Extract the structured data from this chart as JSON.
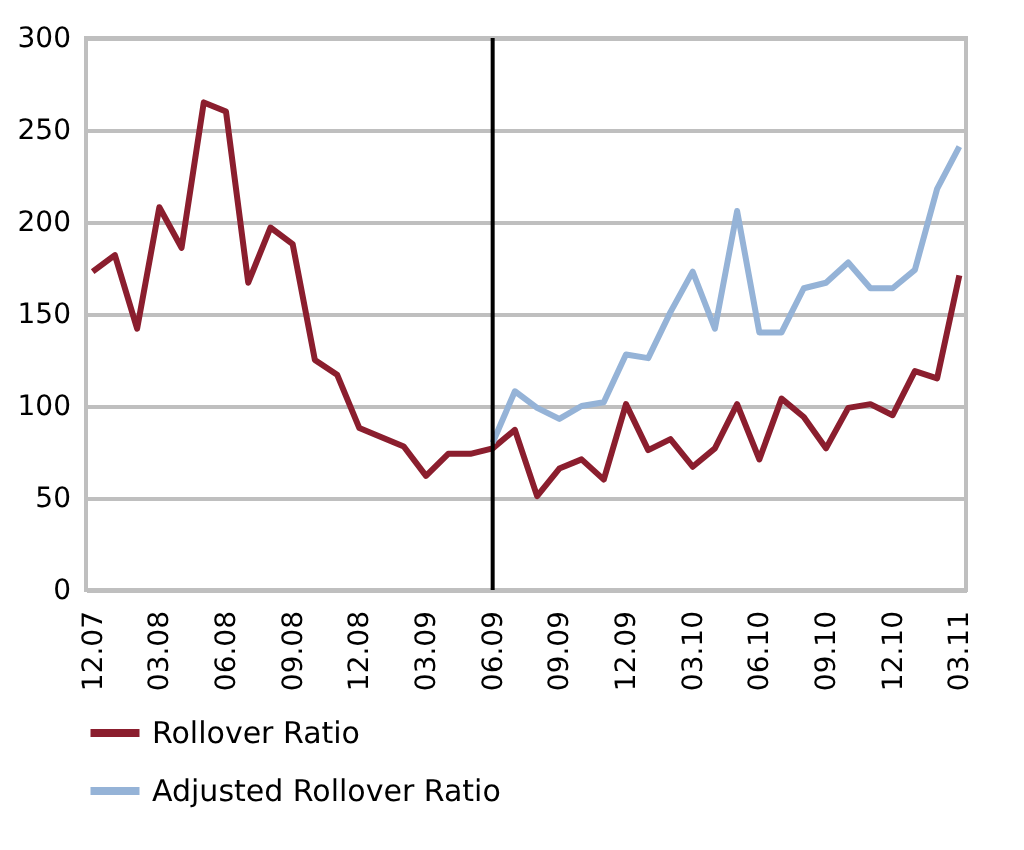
{
  "chart_data": {
    "type": "line",
    "categories": [
      "12.07",
      null,
      null,
      "03.08",
      null,
      null,
      "06.08",
      null,
      null,
      "09.08",
      null,
      null,
      "12.08",
      null,
      null,
      "03.09",
      null,
      null,
      "06.09",
      null,
      null,
      "09.09",
      null,
      null,
      "12.09",
      null,
      null,
      "03.10",
      null,
      null,
      "06.10",
      null,
      null,
      "09.10",
      null,
      null,
      "12.10",
      null,
      null,
      "03.11"
    ],
    "series": [
      {
        "name": "Rollover Ratio",
        "color": "#8b1e2e",
        "values": [
          173,
          182,
          142,
          208,
          186,
          265,
          260,
          167,
          197,
          188,
          125,
          117,
          88,
          83,
          78,
          62,
          74,
          74,
          77,
          87,
          51,
          66,
          71,
          60,
          101,
          76,
          82,
          67,
          77,
          101,
          71,
          104,
          94,
          77,
          99,
          101,
          95,
          119,
          115,
          171
        ]
      },
      {
        "name": "Adjusted Rollover Ratio",
        "color": "#95b3d7",
        "values": [
          null,
          null,
          null,
          null,
          null,
          null,
          null,
          null,
          null,
          null,
          null,
          null,
          null,
          null,
          null,
          null,
          null,
          null,
          80,
          108,
          99,
          93,
          100,
          102,
          128,
          126,
          151,
          173,
          142,
          206,
          140,
          140,
          164,
          167,
          178,
          164,
          164,
          174,
          218,
          241
        ]
      }
    ],
    "ylim": [
      0,
      300
    ],
    "yticks": [
      0,
      50,
      100,
      150,
      200,
      250,
      300
    ],
    "grid": "y",
    "legend": "bottom",
    "ref_lines": [
      {
        "axis": "x",
        "value": "06.09",
        "color": "#000000"
      }
    ]
  }
}
